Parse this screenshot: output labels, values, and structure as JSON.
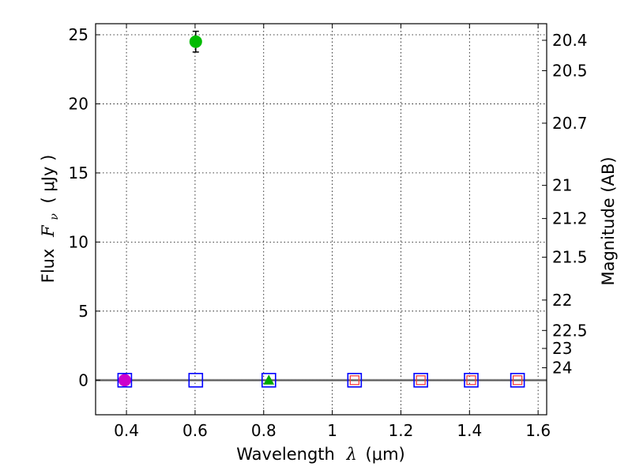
{
  "chart_data": {
    "type": "scatter",
    "xlabel": "Wavelength",
    "xlabel_symbol": "λ",
    "xlabel_unit": "(μm)",
    "ylabel": "Flux",
    "ylabel_symbol": "F",
    "ylabel_sub": "ν",
    "ylabel_unit": "( μJy )",
    "y2label": "Magnitude (AB)",
    "xlim": [
      0.31,
      1.625
    ],
    "ylim": [
      -2.5,
      25.8
    ],
    "xticks": [
      0.4,
      0.6,
      0.8,
      1.0,
      1.2,
      1.4,
      1.6
    ],
    "xtick_labels": [
      "0.4",
      "0.6",
      "0.8",
      "1",
      "1.2",
      "1.4",
      "1.6"
    ],
    "yticks": [
      0,
      5,
      10,
      15,
      20,
      25
    ],
    "ytick_labels": [
      "0",
      "5",
      "10",
      "15",
      "20",
      "25"
    ],
    "mag_ticks": [
      {
        "flux": 24.6,
        "label": "20.4"
      },
      {
        "flux": 22.4,
        "label": "20.5"
      },
      {
        "flux": 18.6,
        "label": "20.7"
      },
      {
        "flux": 14.1,
        "label": "21"
      },
      {
        "flux": 11.7,
        "label": "21.2"
      },
      {
        "flux": 8.9,
        "label": "21.5"
      },
      {
        "flux": 5.8,
        "label": "22"
      },
      {
        "flux": 3.6,
        "label": "22.5"
      },
      {
        "flux": 2.3,
        "label": "23"
      },
      {
        "flux": 0.9,
        "label": "24"
      }
    ],
    "series": [
      {
        "name": "detection-green",
        "marker": "circle",
        "color": "#00bb00",
        "points": [
          {
            "x": 0.602,
            "y": 24.5,
            "yerr": 0.75
          }
        ]
      },
      {
        "name": "detection-magenta",
        "marker": "circle",
        "color": "#cc00cc",
        "points": [
          {
            "x": 0.395,
            "y": 0.0,
            "yerr": 0.0
          }
        ]
      },
      {
        "name": "detection-green-triangle",
        "marker": "triangle",
        "color": "#00aa00",
        "points": [
          {
            "x": 0.815,
            "y": 0.0,
            "yerr": 0.0
          }
        ]
      },
      {
        "name": "upper-limit-blue",
        "marker": "square-open",
        "color": "#0000ff",
        "points": [
          {
            "x": 0.395,
            "y": 0
          },
          {
            "x": 0.602,
            "y": 0
          },
          {
            "x": 0.815,
            "y": 0
          },
          {
            "x": 1.065,
            "y": 0
          },
          {
            "x": 1.258,
            "y": 0
          },
          {
            "x": 1.405,
            "y": 0
          },
          {
            "x": 1.54,
            "y": 0
          }
        ]
      },
      {
        "name": "upper-limit-red",
        "marker": "square-open-small",
        "color": "#ff3333",
        "points": [
          {
            "x": 1.065,
            "y": 0
          },
          {
            "x": 1.258,
            "y": 0
          },
          {
            "x": 1.405,
            "y": 0
          },
          {
            "x": 1.54,
            "y": 0
          }
        ]
      }
    ],
    "zero_line": true,
    "grid": true
  }
}
